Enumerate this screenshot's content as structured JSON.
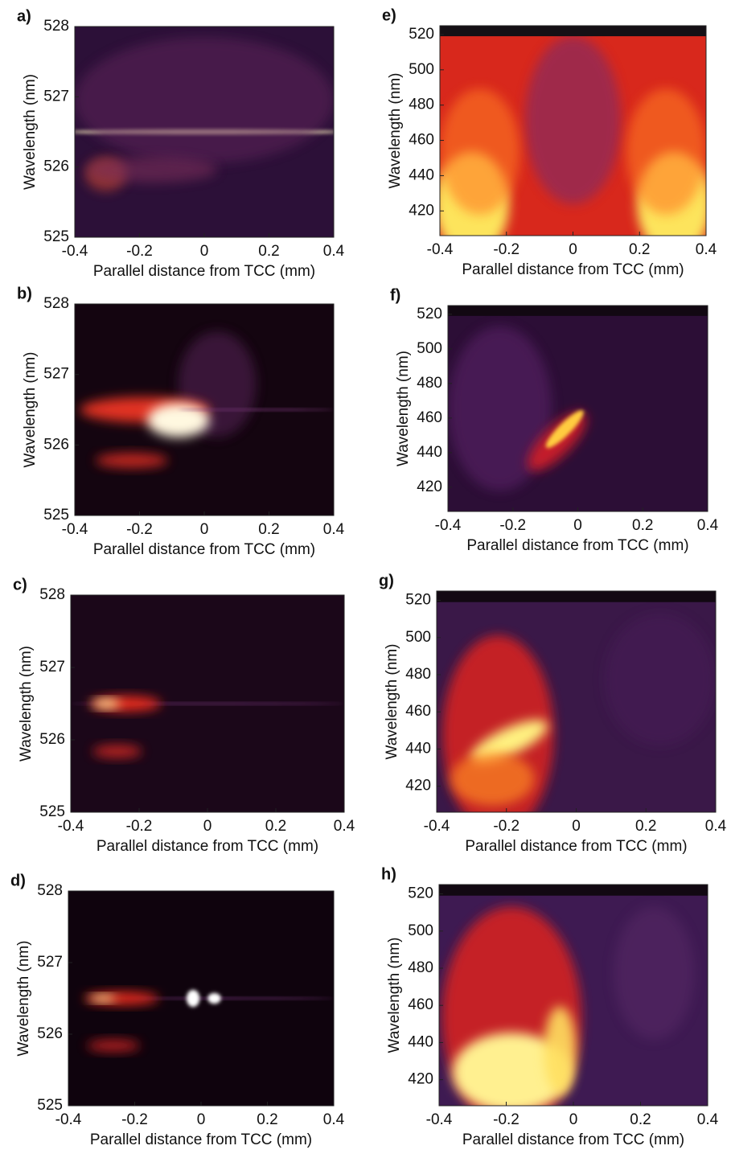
{
  "chart_data": [
    {
      "type": "heatmap",
      "label": "a)",
      "x_label": "Parallel distance from TCC (mm)",
      "y_label": "Wavelength (nm)",
      "xlim": [
        -0.4,
        0.4
      ],
      "xticks": [
        -0.4,
        -0.2,
        0,
        0.2,
        0.4
      ],
      "ylim": [
        525,
        528
      ],
      "yticks": [
        525,
        526,
        527,
        528
      ]
    },
    {
      "type": "heatmap",
      "label": "b)",
      "x_label": "Parallel distance from TCC (mm)",
      "y_label": "Wavelength (nm)",
      "xlim": [
        -0.4,
        0.4
      ],
      "xticks": [
        -0.4,
        -0.2,
        0,
        0.2,
        0.4
      ],
      "ylim": [
        525,
        528
      ],
      "yticks": [
        525,
        526,
        527,
        528
      ]
    },
    {
      "type": "heatmap",
      "label": "c)",
      "x_label": "Parallel distance from TCC (mm)",
      "y_label": "Wavelength (nm)",
      "xlim": [
        -0.4,
        0.4
      ],
      "xticks": [
        -0.4,
        -0.2,
        0,
        0.2,
        0.4
      ],
      "ylim": [
        525,
        528
      ],
      "yticks": [
        525,
        526,
        527,
        528
      ]
    },
    {
      "type": "heatmap",
      "label": "d)",
      "x_label": "Parallel distance from TCC (mm)",
      "y_label": "Wavelength (nm)",
      "xlim": [
        -0.4,
        0.4
      ],
      "xticks": [
        -0.4,
        -0.2,
        0,
        0.2,
        0.4
      ],
      "ylim": [
        525,
        528
      ],
      "yticks": [
        525,
        526,
        527,
        528
      ]
    },
    {
      "type": "heatmap",
      "label": "e)",
      "x_label": "Parallel distance from TCC (mm)",
      "y_label": "Wavelength (nm)",
      "xlim": [
        -0.4,
        0.4
      ],
      "xticks": [
        -0.4,
        -0.2,
        0,
        0.2,
        0.4
      ],
      "ylim": [
        406,
        525
      ],
      "yticks": [
        420,
        440,
        460,
        480,
        500,
        520
      ]
    },
    {
      "type": "heatmap",
      "label": "f)",
      "x_label": "Parallel distance from TCC (mm)",
      "y_label": "Wavelength (nm)",
      "xlim": [
        -0.4,
        0.4
      ],
      "xticks": [
        -0.4,
        -0.2,
        0,
        0.2,
        0.4
      ],
      "ylim": [
        406,
        525
      ],
      "yticks": [
        420,
        440,
        460,
        480,
        500,
        520
      ]
    },
    {
      "type": "heatmap",
      "label": "g)",
      "x_label": "Parallel distance from TCC (mm)",
      "y_label": "Wavelength (nm)",
      "xlim": [
        -0.4,
        0.4
      ],
      "xticks": [
        -0.4,
        -0.2,
        0,
        0.2,
        0.4
      ],
      "ylim": [
        406,
        525
      ],
      "yticks": [
        420,
        440,
        460,
        480,
        500,
        520
      ]
    },
    {
      "type": "heatmap",
      "label": "h)",
      "x_label": "Parallel distance from TCC (mm)",
      "y_label": "Wavelength (nm)",
      "xlim": [
        -0.4,
        0.4
      ],
      "xticks": [
        -0.4,
        -0.2,
        0,
        0.2,
        0.4
      ],
      "ylim": [
        406,
        525
      ],
      "yticks": [
        420,
        440,
        460,
        480,
        500,
        520
      ]
    }
  ]
}
